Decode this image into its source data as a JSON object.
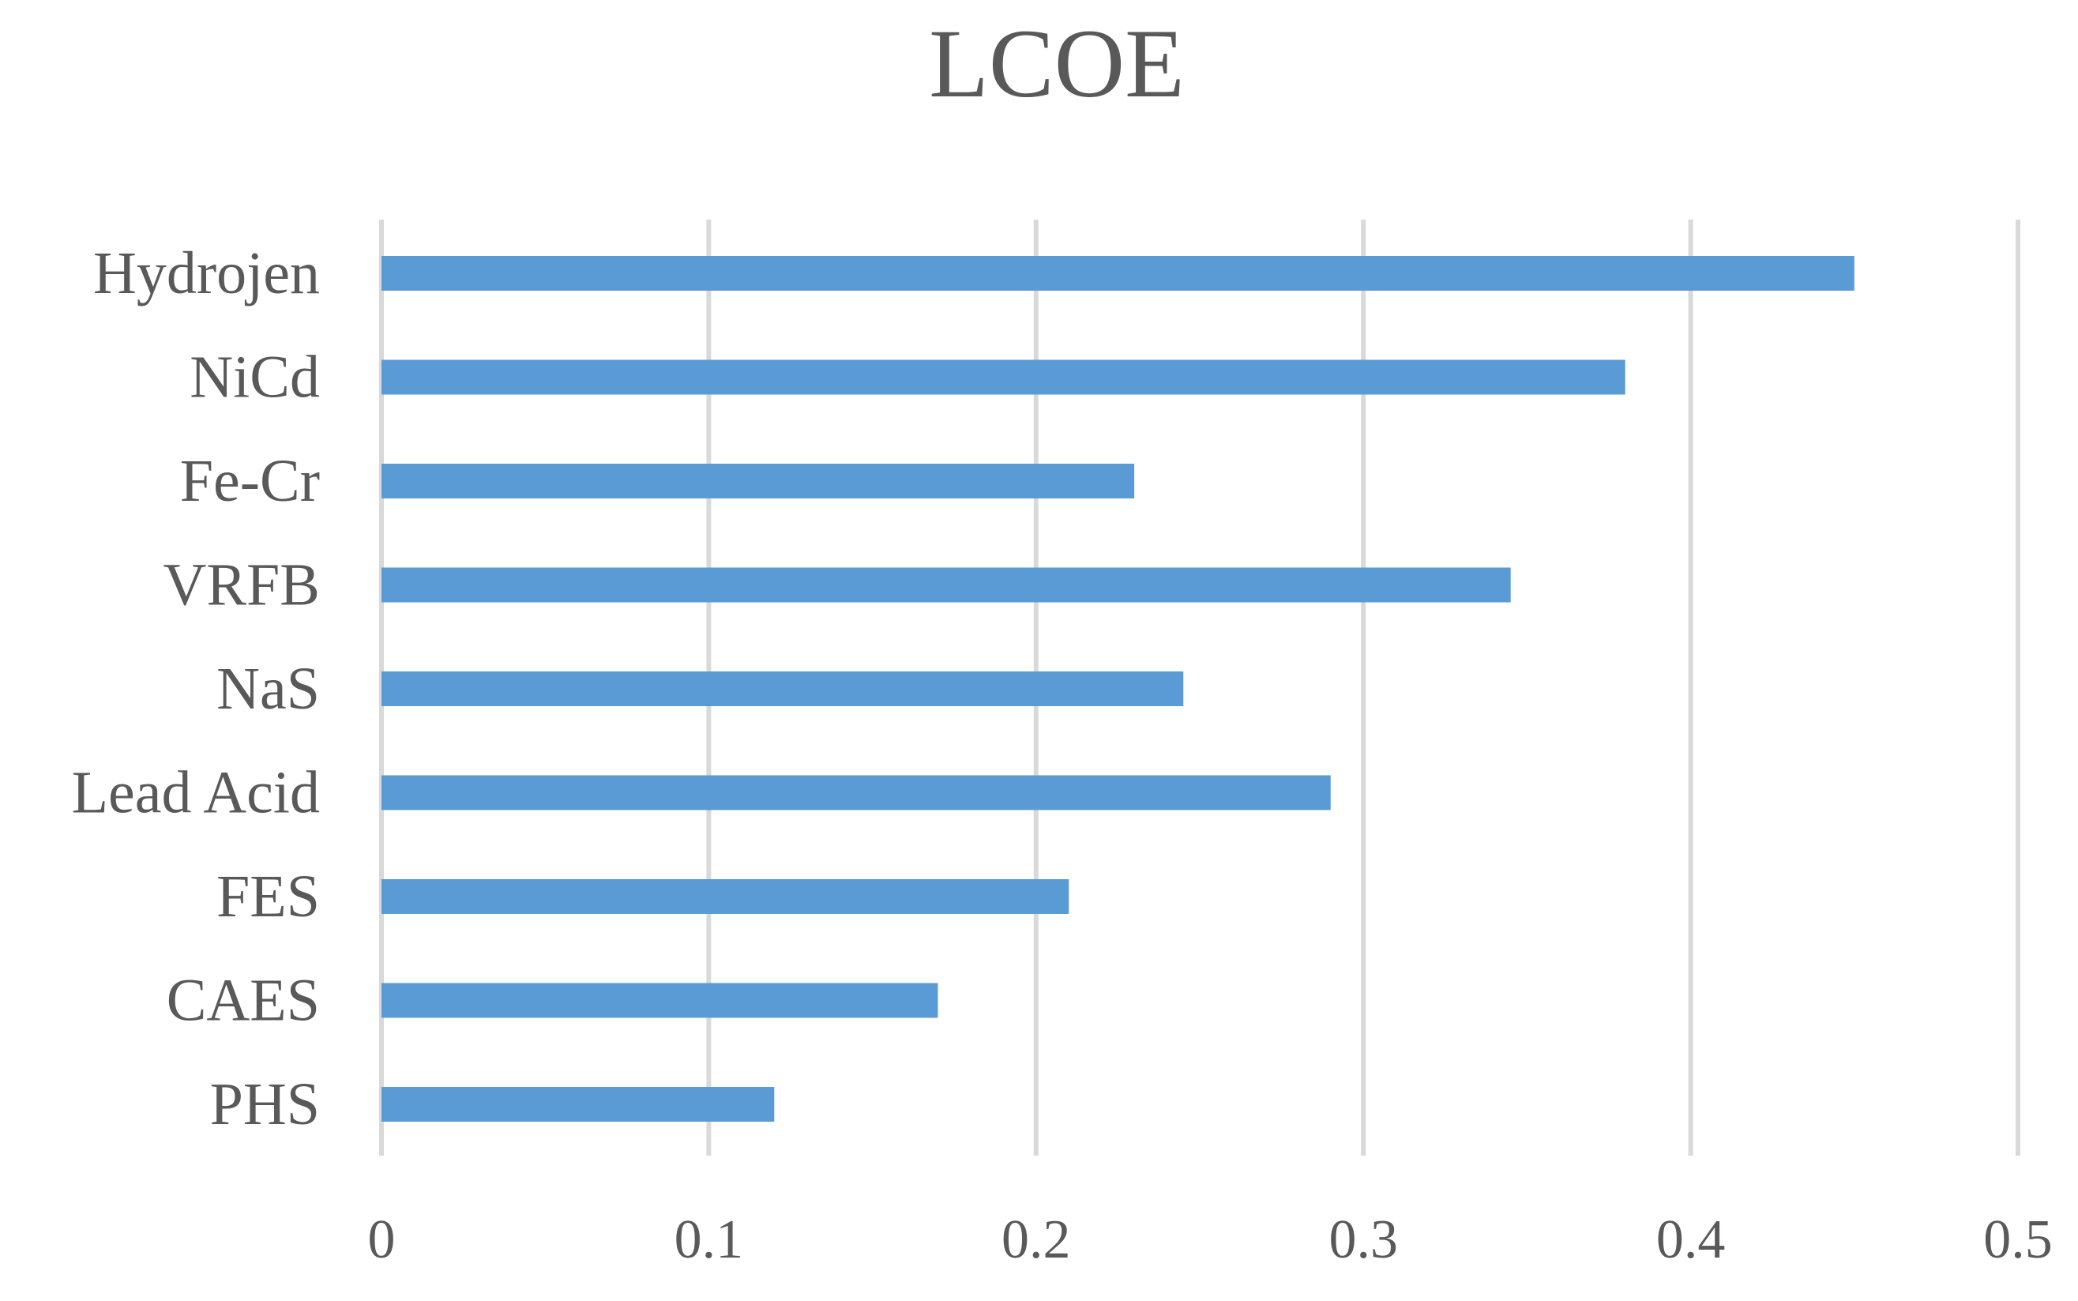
{
  "chart_data": {
    "type": "bar",
    "orientation": "horizontal",
    "title": "LCOE",
    "xlabel": "",
    "ylabel": "",
    "categories": [
      "Hydrojen",
      "NiCd",
      "Fe-Cr",
      "VRFB",
      "NaS",
      "Lead Acid",
      "FES",
      "CAES",
      "PHS"
    ],
    "values": [
      0.45,
      0.38,
      0.23,
      0.345,
      0.245,
      0.29,
      0.21,
      0.17,
      0.12
    ],
    "xlim": [
      0,
      0.5
    ],
    "xticks": [
      "0",
      "0.1",
      "0.2",
      "0.3",
      "0.4",
      "0.5"
    ],
    "grid": true,
    "legend": "none",
    "colors": {
      "bar": "#5B9BD5",
      "grid": "#D9D9D9",
      "text": "#595959"
    }
  }
}
